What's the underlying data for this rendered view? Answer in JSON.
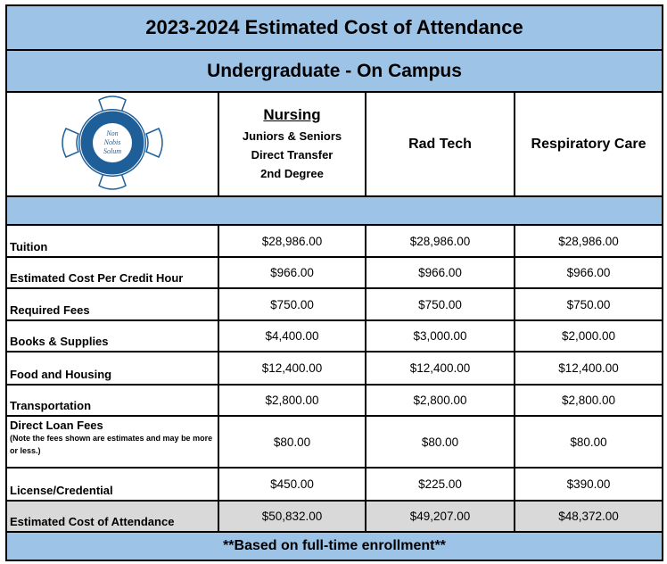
{
  "title": "2023-2024 Estimated Cost of Attendance",
  "subtitle": "Undergraduate - On Campus",
  "logo": {
    "ring_text_top": "BLESSING-RIEMAN COLLEGE",
    "ring_text_bottom": "NURSING & HEALTH SCIENCES",
    "center": "Non Nobis Solum",
    "color": "#1f5f99"
  },
  "columns": [
    {
      "name": "Nursing",
      "details": [
        "Juniors & Seniors",
        "Direct Transfer",
        "2nd Degree"
      ]
    },
    {
      "name": "Rad Tech"
    },
    {
      "name": "Respiratory Care"
    }
  ],
  "rows": [
    {
      "label": "Tuition",
      "values": [
        "$28,986.00",
        "$28,986.00",
        "$28,986.00"
      ]
    },
    {
      "label": "Estimated Cost Per Credit Hour",
      "values": [
        "$966.00",
        "$966.00",
        "$966.00"
      ]
    },
    {
      "label": "Required Fees",
      "values": [
        "$750.00",
        "$750.00",
        "$750.00"
      ]
    },
    {
      "label": "Books & Supplies",
      "values": [
        "$4,400.00",
        "$3,000.00",
        "$2,000.00"
      ]
    },
    {
      "label": "Food and Housing",
      "values": [
        "$12,400.00",
        "$12,400.00",
        "$12,400.00"
      ]
    },
    {
      "label": "Transportation",
      "values": [
        "$2,800.00",
        "$2,800.00",
        "$2,800.00"
      ]
    },
    {
      "label": "Direct Loan Fees",
      "note": "(Note the fees shown are estimates and may be more or less.)",
      "values": [
        "$80.00",
        "$80.00",
        "$80.00"
      ]
    },
    {
      "label": "License/Credential",
      "values": [
        "$450.00",
        "$225.00",
        "$390.00"
      ]
    },
    {
      "label": "Estimated Cost of Attendance",
      "values": [
        "$50,832.00",
        "$49,207.00",
        "$48,372.00"
      ]
    }
  ],
  "footer": "**Based on full-time enrollment**",
  "colors": {
    "header_blue": "#9dc3e6",
    "total_gray": "#d9d9d9"
  }
}
